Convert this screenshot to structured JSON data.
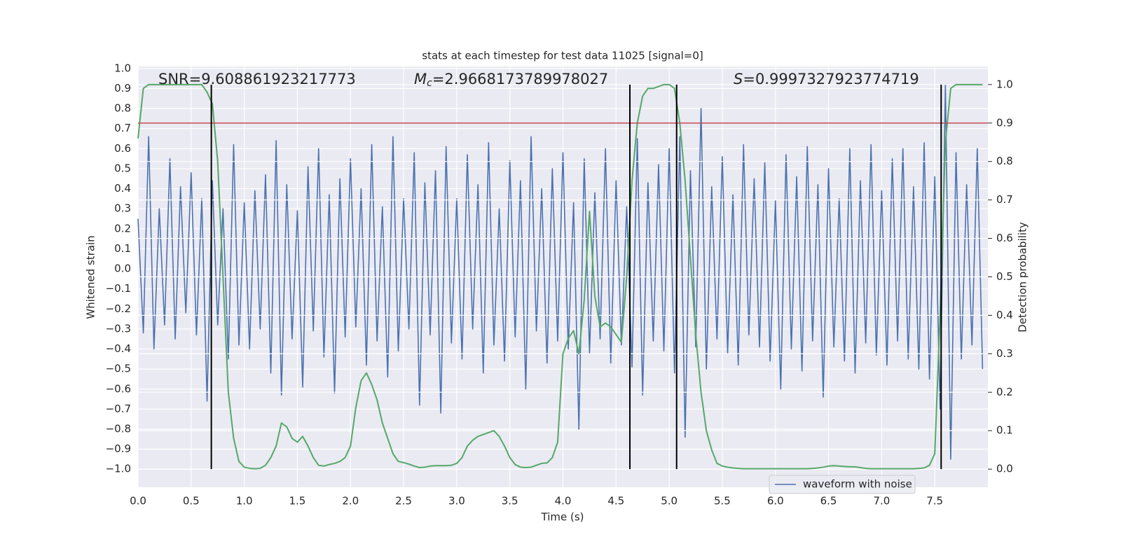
{
  "chart_data": {
    "type": "line",
    "title": "stats at each timestep for test data 11025 [signal=0]",
    "xlabel": "Time (s)",
    "ylabel": "Whitened strain",
    "y2label": "Detection probability",
    "xlim": [
      0,
      8
    ],
    "ylim": [
      -1.09,
      1.01
    ],
    "y2lim": [
      -0.047,
      1.047
    ],
    "grid": true,
    "legend": "lower right",
    "xticks": [
      {
        "value": 0,
        "label": "0.0"
      },
      {
        "value": 0.5,
        "label": "0.5"
      },
      {
        "value": 1,
        "label": "1.0"
      },
      {
        "value": 1.5,
        "label": "1.5"
      },
      {
        "value": 2,
        "label": "2.0"
      },
      {
        "value": 2.5,
        "label": "2.5"
      },
      {
        "value": 3,
        "label": "3.0"
      },
      {
        "value": 3.5,
        "label": "3.5"
      },
      {
        "value": 4,
        "label": "4.0"
      },
      {
        "value": 4.5,
        "label": "4.5"
      },
      {
        "value": 5,
        "label": "5.0"
      },
      {
        "value": 5.5,
        "label": "5.5"
      },
      {
        "value": 6,
        "label": "6.0"
      },
      {
        "value": 6.5,
        "label": "6.5"
      },
      {
        "value": 7,
        "label": "7.0"
      },
      {
        "value": 7.5,
        "label": "7.5"
      }
    ],
    "yticks": [
      {
        "value": -1,
        "label": "−1.0"
      },
      {
        "value": -0.9,
        "label": "−0.9"
      },
      {
        "value": -0.8,
        "label": "−0.8"
      },
      {
        "value": -0.7,
        "label": "−0.7"
      },
      {
        "value": -0.6,
        "label": "−0.6"
      },
      {
        "value": -0.5,
        "label": "−0.5"
      },
      {
        "value": -0.4,
        "label": "−0.4"
      },
      {
        "value": -0.3,
        "label": "−0.3"
      },
      {
        "value": -0.2,
        "label": "−0.2"
      },
      {
        "value": -0.1,
        "label": "−0.1"
      },
      {
        "value": 0,
        "label": "0.0"
      },
      {
        "value": 0.1,
        "label": "0.1"
      },
      {
        "value": 0.2,
        "label": "0.2"
      },
      {
        "value": 0.3,
        "label": "0.3"
      },
      {
        "value": 0.4,
        "label": "0.4"
      },
      {
        "value": 0.5,
        "label": "0.5"
      },
      {
        "value": 0.6,
        "label": "0.6"
      },
      {
        "value": 0.7,
        "label": "0.7"
      },
      {
        "value": 0.8,
        "label": "0.8"
      },
      {
        "value": 0.9,
        "label": "0.9"
      },
      {
        "value": 1,
        "label": "1.0"
      }
    ],
    "y2ticks": [
      {
        "value": 0,
        "label": "0.0"
      },
      {
        "value": 0.1,
        "label": "0.1"
      },
      {
        "value": 0.2,
        "label": "0.2"
      },
      {
        "value": 0.3,
        "label": "0.3"
      },
      {
        "value": 0.4,
        "label": "0.4"
      },
      {
        "value": 0.5,
        "label": "0.5"
      },
      {
        "value": 0.6,
        "label": "0.6"
      },
      {
        "value": 0.7,
        "label": "0.7"
      },
      {
        "value": 0.8,
        "label": "0.8"
      },
      {
        "value": 0.9,
        "label": "0.9"
      },
      {
        "value": 1,
        "label": "1.0"
      }
    ],
    "x": [
      0,
      0.05,
      0.1,
      0.15,
      0.2,
      0.25,
      0.3,
      0.35,
      0.4,
      0.45,
      0.5,
      0.55,
      0.6,
      0.65,
      0.7,
      0.75,
      0.8,
      0.85,
      0.9,
      0.95,
      1,
      1.05,
      1.1,
      1.15,
      1.2,
      1.25,
      1.3,
      1.35,
      1.4,
      1.45,
      1.5,
      1.55,
      1.6,
      1.65,
      1.7,
      1.75,
      1.8,
      1.85,
      1.9,
      1.95,
      2,
      2.05,
      2.1,
      2.15,
      2.2,
      2.25,
      2.3,
      2.35,
      2.4,
      2.45,
      2.5,
      2.55,
      2.6,
      2.65,
      2.7,
      2.75,
      2.8,
      2.85,
      2.9,
      2.95,
      3,
      3.05,
      3.1,
      3.15,
      3.2,
      3.25,
      3.3,
      3.35,
      3.4,
      3.45,
      3.5,
      3.55,
      3.6,
      3.65,
      3.7,
      3.75,
      3.8,
      3.85,
      3.9,
      3.95,
      4,
      4.05,
      4.1,
      4.15,
      4.2,
      4.25,
      4.3,
      4.35,
      4.4,
      4.45,
      4.5,
      4.55,
      4.6,
      4.65,
      4.7,
      4.75,
      4.8,
      4.85,
      4.9,
      4.95,
      5,
      5.05,
      5.1,
      5.15,
      5.2,
      5.25,
      5.3,
      5.35,
      5.4,
      5.45,
      5.5,
      5.55,
      5.6,
      5.65,
      5.7,
      5.75,
      5.8,
      5.85,
      5.9,
      5.95,
      6,
      6.05,
      6.1,
      6.15,
      6.2,
      6.25,
      6.3,
      6.35,
      6.4,
      6.45,
      6.5,
      6.55,
      6.6,
      6.65,
      6.7,
      6.75,
      6.8,
      6.85,
      6.9,
      6.95,
      7,
      7.05,
      7.1,
      7.15,
      7.2,
      7.25,
      7.3,
      7.35,
      7.4,
      7.45,
      7.5,
      7.55,
      7.6,
      7.65,
      7.7,
      7.75,
      7.8,
      7.85,
      7.9,
      7.95
    ],
    "series": [
      {
        "name": "waveform with noise",
        "color": "#4c72b0",
        "axis": "y",
        "values": [
          0.25,
          -0.32,
          0.66,
          -0.4,
          0.3,
          -0.28,
          0.55,
          -0.35,
          0.41,
          -0.22,
          0.48,
          -0.33,
          0.35,
          -0.66,
          0.44,
          -0.28,
          0.3,
          -0.45,
          0.62,
          -0.38,
          0.33,
          -0.4,
          0.39,
          -0.3,
          0.47,
          -0.52,
          0.64,
          -0.63,
          0.42,
          -0.35,
          0.29,
          -0.59,
          0.51,
          -0.31,
          0.6,
          -0.44,
          0.37,
          -0.62,
          0.45,
          -0.34,
          0.55,
          -0.29,
          0.4,
          -0.48,
          0.62,
          -0.36,
          0.31,
          -0.54,
          0.66,
          -0.41,
          0.35,
          -0.3,
          0.58,
          -0.68,
          0.43,
          -0.33,
          0.49,
          -0.72,
          0.61,
          -0.37,
          0.35,
          -0.45,
          0.57,
          -0.3,
          0.42,
          -0.52,
          0.63,
          -0.38,
          0.3,
          -0.46,
          0.54,
          -0.34,
          0.44,
          -0.6,
          0.66,
          -0.31,
          0.4,
          -0.47,
          0.5,
          -0.36,
          0.58,
          -0.4,
          0.33,
          -0.8,
          0.55,
          -0.42,
          0.38,
          -0.35,
          0.6,
          -0.47,
          0.44,
          -0.38,
          0.31,
          -0.49,
          0.65,
          -0.63,
          0.43,
          -0.36,
          0.52,
          -0.41,
          0.6,
          -0.52,
          0.66,
          -0.84,
          0.49,
          -0.39,
          0.8,
          -0.5,
          0.41,
          -0.35,
          0.56,
          -0.42,
          0.37,
          -0.48,
          0.62,
          -0.33,
          0.45,
          -0.39,
          0.53,
          -0.46,
          0.34,
          -0.6,
          0.57,
          -0.4,
          0.46,
          -0.51,
          0.61,
          -0.36,
          0.42,
          -0.64,
          0.5,
          -0.39,
          0.35,
          -0.46,
          0.6,
          -0.52,
          0.44,
          -0.37,
          0.62,
          -0.43,
          0.39,
          -0.48,
          0.55,
          -0.36,
          0.6,
          -0.45,
          0.41,
          -0.5,
          0.63,
          -0.55,
          0.46,
          -0.7,
          0.92,
          -0.95,
          0.58,
          -0.45,
          0.42,
          -0.38,
          0.6,
          -0.5
        ]
      },
      {
        "color": "#55a868",
        "axis": "y2",
        "values": [
          0.86,
          0.99,
          1.0,
          1.0,
          1.0,
          1.0,
          1.0,
          1.0,
          1.0,
          1.0,
          1.0,
          1.0,
          1.0,
          0.98,
          0.95,
          0.8,
          0.5,
          0.2,
          0.08,
          0.02,
          0.005,
          0.002,
          0.001,
          0.002,
          0.01,
          0.03,
          0.06,
          0.12,
          0.11,
          0.08,
          0.07,
          0.085,
          0.06,
          0.03,
          0.01,
          0.008,
          0.012,
          0.015,
          0.02,
          0.03,
          0.06,
          0.16,
          0.23,
          0.25,
          0.22,
          0.18,
          0.12,
          0.08,
          0.04,
          0.02,
          0.017,
          0.013,
          0.008,
          0.004,
          0.005,
          0.008,
          0.009,
          0.009,
          0.009,
          0.01,
          0.015,
          0.03,
          0.06,
          0.075,
          0.085,
          0.09,
          0.095,
          0.1,
          0.085,
          0.06,
          0.03,
          0.012,
          0.005,
          0.004,
          0.005,
          0.01,
          0.015,
          0.016,
          0.03,
          0.07,
          0.3,
          0.34,
          0.36,
          0.3,
          0.44,
          0.67,
          0.45,
          0.37,
          0.38,
          0.37,
          0.35,
          0.33,
          0.5,
          0.75,
          0.9,
          0.97,
          0.99,
          0.99,
          0.995,
          1.0,
          1.0,
          0.99,
          0.9,
          0.75,
          0.55,
          0.35,
          0.2,
          0.1,
          0.05,
          0.015,
          0.008,
          0.005,
          0.003,
          0.002,
          0.001,
          0.001,
          0.001,
          0.001,
          0.001,
          0.001,
          0.001,
          0.001,
          0.001,
          0.001,
          0.001,
          0.001,
          0.001,
          0.002,
          0.003,
          0.005,
          0.008,
          0.009,
          0.008,
          0.007,
          0.006,
          0.006,
          0.004,
          0.002,
          0.001,
          0.001,
          0.001,
          0.001,
          0.001,
          0.001,
          0.001,
          0.001,
          0.001,
          0.002,
          0.003,
          0.01,
          0.04,
          0.4,
          0.85,
          0.99,
          1.0,
          1.0,
          1.0,
          1.0,
          1.0,
          1.0
        ]
      }
    ],
    "threshold": {
      "y2": 0.9,
      "color": "#c44e52"
    },
    "vlines": {
      "x": [
        0.69,
        4.63,
        5.07,
        7.56
      ],
      "y2": [
        0,
        1
      ],
      "color": "#000000"
    },
    "annotations": [
      {
        "text": "SNR=9.608861923217773"
      },
      {
        "symbol": "M",
        "subscript": "c",
        "text": "=2.9668173789978027"
      },
      {
        "symbol": "S",
        "text": "=0.9997327923774719"
      }
    ]
  }
}
